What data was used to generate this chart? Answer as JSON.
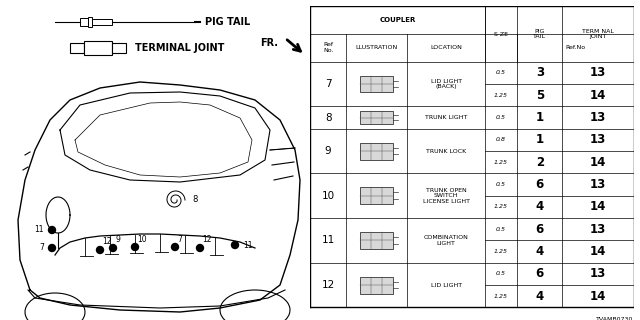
{
  "diagram_code": "TVAMB0730",
  "bg_color": "#ffffff",
  "table_headers": {
    "coupler": "COUPLER",
    "size": "S ZE",
    "pig_tail": "PIG\nTAIL",
    "terminal_joint": "TERM NAL\nJOINT",
    "ref_no": "Ref\nNo.",
    "illustration": "LLUSTRATION",
    "location": "LOCATION",
    "ref_no_col": "Ref.No"
  },
  "rows": [
    {
      "ref": "7",
      "location": "LID LIGHT\n(BACK)",
      "sizes": [
        {
          "size": "0.5",
          "pig_tail": "3",
          "terminal_joint": "13"
        },
        {
          "size": "1.25",
          "pig_tail": "5",
          "terminal_joint": "14"
        }
      ]
    },
    {
      "ref": "8",
      "location": "TRUNK LIGHT",
      "sizes": [
        {
          "size": "0.5",
          "pig_tail": "1",
          "terminal_joint": "13"
        }
      ]
    },
    {
      "ref": "9",
      "location": "TRUNK LOCK",
      "sizes": [
        {
          "size": "0.8",
          "pig_tail": "1",
          "terminal_joint": "13"
        },
        {
          "size": "1.25",
          "pig_tail": "2",
          "terminal_joint": "14"
        }
      ]
    },
    {
      "ref": "10",
      "location": "TRUNK OPEN\nSWITCH\nLICENSE LIGHT",
      "sizes": [
        {
          "size": "0.5",
          "pig_tail": "6",
          "terminal_joint": "13"
        },
        {
          "size": "1.25",
          "pig_tail": "4",
          "terminal_joint": "14"
        }
      ]
    },
    {
      "ref": "11",
      "location": "COMBINATION\nLIGHT",
      "sizes": [
        {
          "size": "0.5",
          "pig_tail": "6",
          "terminal_joint": "13"
        },
        {
          "size": "1.25",
          "pig_tail": "4",
          "terminal_joint": "14"
        }
      ]
    },
    {
      "ref": "12",
      "location": "LID LIGHT",
      "sizes": [
        {
          "size": "0.5",
          "pig_tail": "6",
          "terminal_joint": "13"
        },
        {
          "size": "1.25",
          "pig_tail": "4",
          "terminal_joint": "14"
        }
      ]
    }
  ]
}
